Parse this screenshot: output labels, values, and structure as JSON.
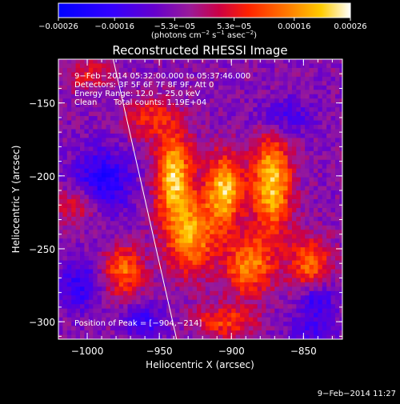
{
  "chart_data": {
    "type": "heatmap",
    "title": "Reconstructed RHESSI Image",
    "xlabel": "Heliocentric X (arcsec)",
    "ylabel": "Heliocentric Y (arcsec)",
    "xlim": [
      -1020,
      -823
    ],
    "ylim": [
      -312,
      -120
    ],
    "xticks": [
      -1000,
      -950,
      -900,
      -850
    ],
    "xtick_labels": [
      "−1000",
      "−950",
      "−900",
      "−850"
    ],
    "yticks": [
      -150,
      -200,
      -250,
      -300
    ],
    "ytick_labels": [
      "−150",
      "−200",
      "−250",
      "−300"
    ],
    "colorbar": {
      "range": [
        -0.00026,
        0.00026
      ],
      "tick_values": [
        -0.00026,
        -0.00016,
        -5.3e-05,
        5.3e-05,
        0.00016,
        0.00026
      ],
      "tick_labels": [
        "−0.00026",
        "−0.00016",
        "−5.3e−05",
        "5.3e−05",
        "0.00016",
        "0.00026"
      ],
      "units_prefix": "(photons cm",
      "units_exp1": "−2",
      "units_mid": " s",
      "units_exp2": "−1",
      "units_mid2": " asec",
      "units_exp3": "−2",
      "units_suffix": ")"
    },
    "annotations": {
      "time_range": "9−Feb−2014 05:32:00.000 to 05:37:46.000",
      "detectors": "Detectors: 3F 5F 6F 7F 8F 9F, Att 0",
      "energy_range": "Energy Range: 12.0 − 25.0 keV",
      "algorithm": "Clean",
      "total_counts": "Total counts: 1.19E+04",
      "peak_position": "Position of Peak = [−904,−214]"
    },
    "peak": {
      "x": -904,
      "y": -214
    },
    "limb_line": {
      "from": [
        -982,
        -120
      ],
      "to": [
        -938,
        -312
      ]
    },
    "bright_features": [
      {
        "x": -940,
        "y": -200,
        "sx": 9,
        "sy": 22,
        "amp": 0.00026
      },
      {
        "x": -905,
        "y": -210,
        "sx": 9,
        "sy": 18,
        "amp": 0.00026
      },
      {
        "x": -872,
        "y": -205,
        "sx": 10,
        "sy": 25,
        "amp": 0.00026
      },
      {
        "x": -928,
        "y": -242,
        "sx": 12,
        "sy": 18,
        "amp": 0.00022
      },
      {
        "x": -888,
        "y": -262,
        "sx": 12,
        "sy": 14,
        "amp": 0.0002
      },
      {
        "x": -845,
        "y": -260,
        "sx": 10,
        "sy": 12,
        "amp": 0.00018
      },
      {
        "x": -975,
        "y": -265,
        "sx": 10,
        "sy": 12,
        "amp": 0.00018
      },
      {
        "x": -1005,
        "y": -220,
        "sx": 12,
        "sy": 10,
        "amp": 0.00012
      },
      {
        "x": -905,
        "y": -300,
        "sx": 15,
        "sy": 8,
        "amp": 0.00014
      },
      {
        "x": -958,
        "y": -160,
        "sx": 12,
        "sy": 10,
        "amp": 0.00012
      },
      {
        "x": -1000,
        "y": -130,
        "sx": 12,
        "sy": 8,
        "amp": 0.0001
      },
      {
        "x": -990,
        "y": -205,
        "sx": 14,
        "sy": 16,
        "amp": -0.00016
      },
      {
        "x": -1005,
        "y": -275,
        "sx": 10,
        "sy": 12,
        "amp": -0.00012
      },
      {
        "x": -960,
        "y": -300,
        "sx": 10,
        "sy": 8,
        "amp": -0.0001
      },
      {
        "x": -845,
        "y": -305,
        "sx": 12,
        "sy": 8,
        "amp": -8e-05
      },
      {
        "x": -840,
        "y": -285,
        "sx": 8,
        "sy": 8,
        "amp": -0.00012
      },
      {
        "x": -865,
        "y": -160,
        "sx": 14,
        "sy": 10,
        "amp": -0.0001
      }
    ]
  },
  "footer": {
    "timestamp": "9−Feb−2014 11:27"
  }
}
